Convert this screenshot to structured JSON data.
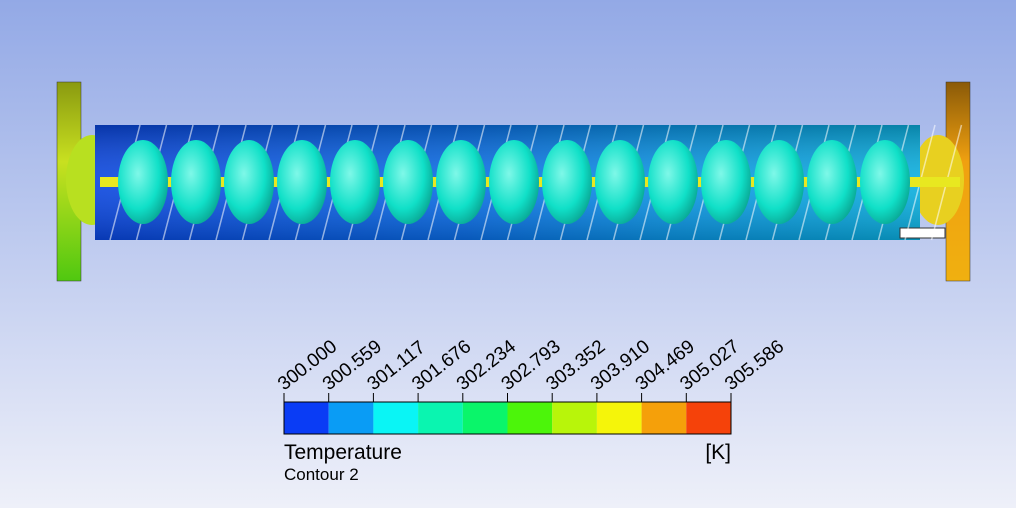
{
  "legend": {
    "ticks": [
      "300.000",
      "300.559",
      "301.117",
      "301.676",
      "302.234",
      "302.793",
      "303.352",
      "303.910",
      "304.469",
      "305.027",
      "305.586"
    ],
    "colors": [
      "#0a3cf5",
      "#0a9cf5",
      "#0af5f5",
      "#0af5b0",
      "#0af56a",
      "#4cf50a",
      "#b8f50a",
      "#f5f50a",
      "#f5a00a",
      "#f5420a"
    ],
    "title": "Temperature",
    "unit": "[K]",
    "subtitle": "Contour 2"
  }
}
